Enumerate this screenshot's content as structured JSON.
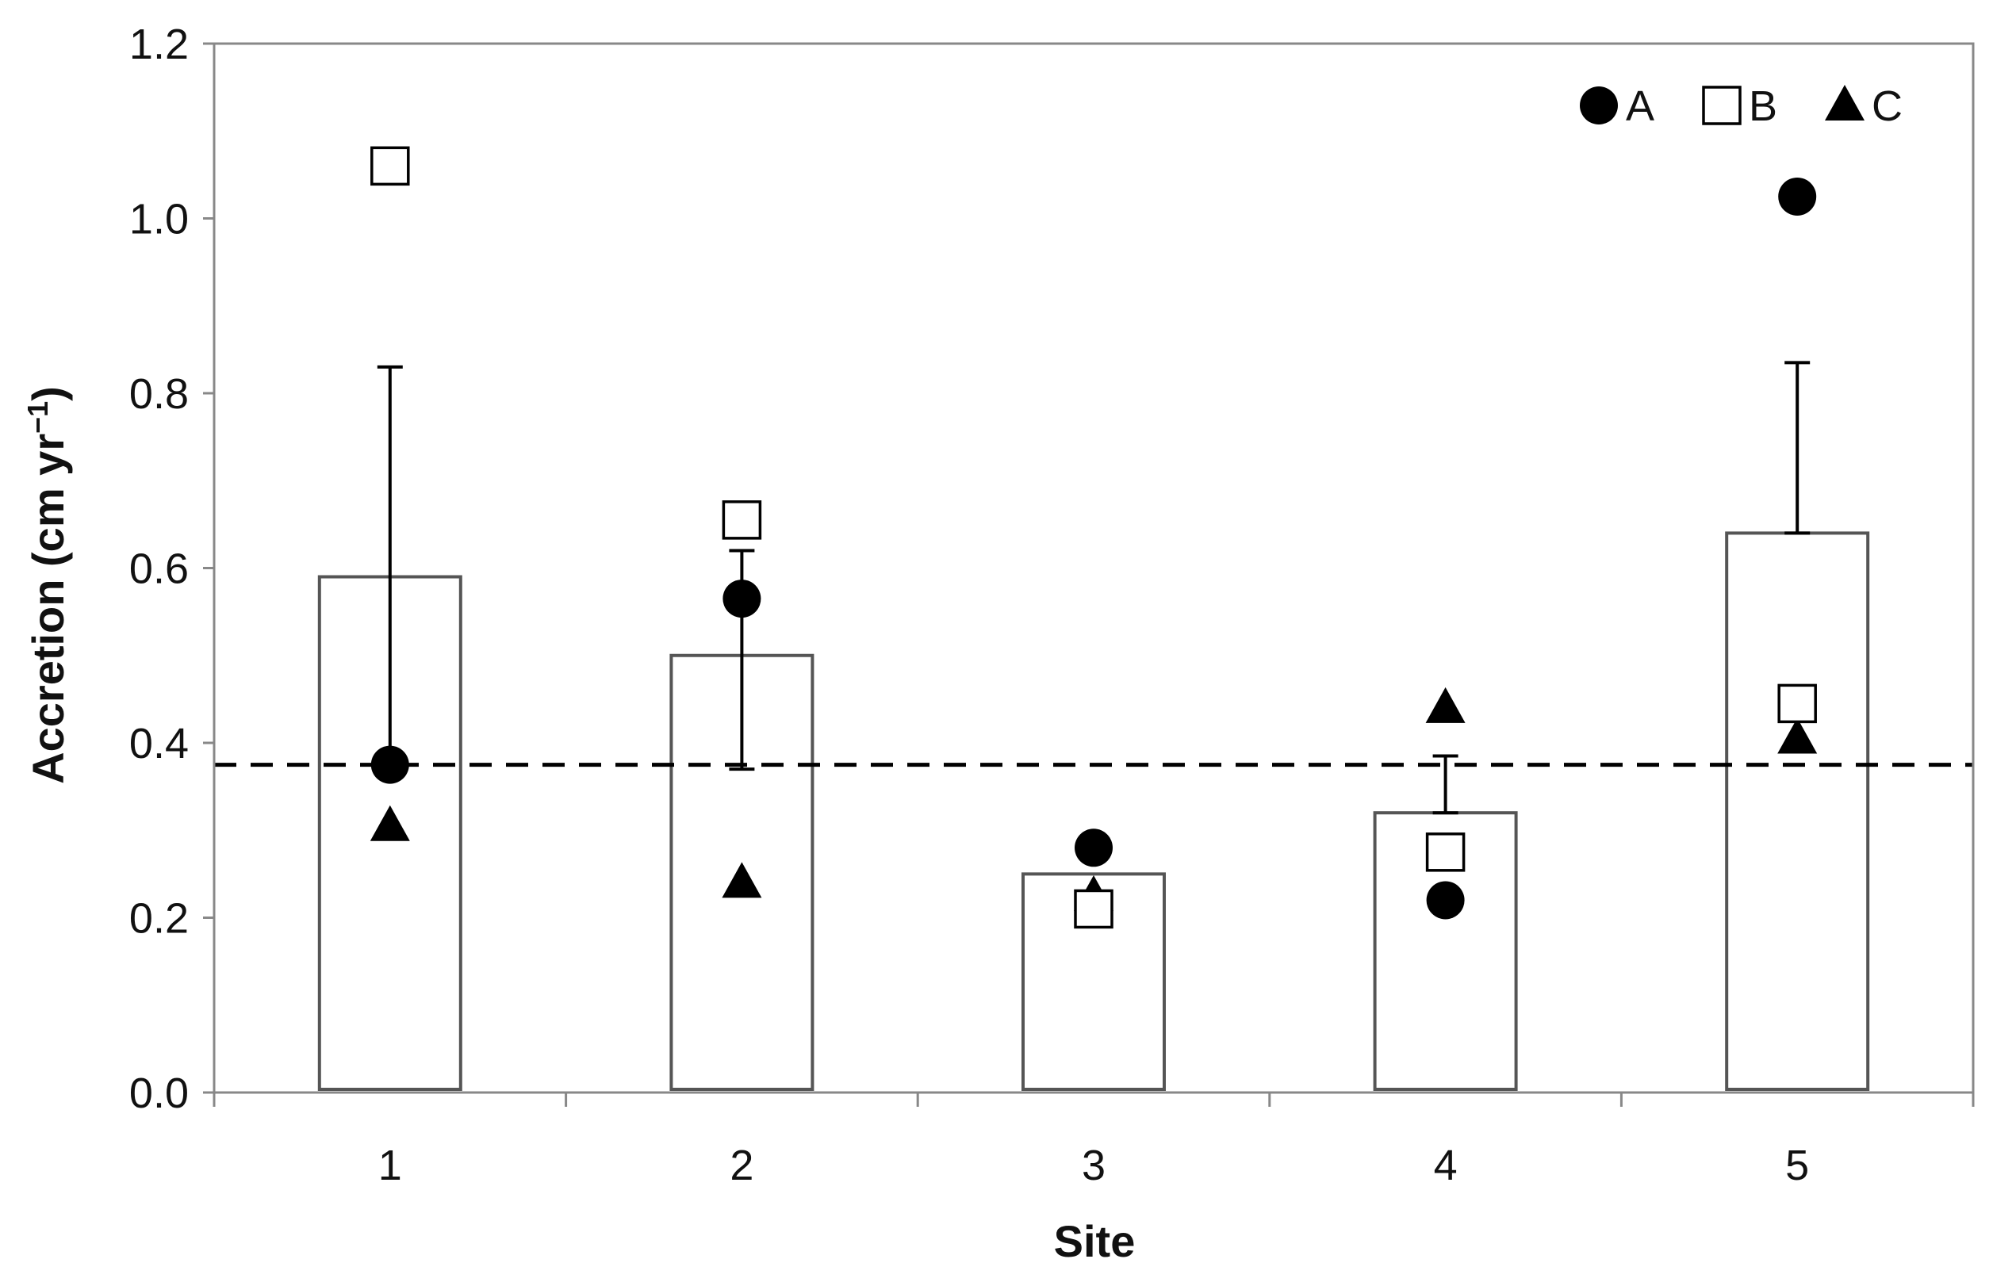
{
  "chart_data": {
    "type": "bar",
    "title": "",
    "xlabel": "Site",
    "ylabel": "Accretion (cm yr",
    "ylabel_superscript": "−1",
    "ylabel_close": ")",
    "categories": [
      "1",
      "2",
      "3",
      "4",
      "5"
    ],
    "ylim": [
      0,
      1.2
    ],
    "yticks": [
      "0.0",
      "0.2",
      "0.4",
      "0.6",
      "0.8",
      "1.0",
      "1.2"
    ],
    "bars": {
      "values": [
        0.59,
        0.5,
        0.25,
        0.32,
        0.64
      ],
      "error_upper": [
        0.83,
        0.62,
        0.25,
        0.385,
        0.835
      ],
      "error_lower": [
        0.375,
        0.37,
        0.25,
        0.32,
        0.64
      ],
      "fill": "#ffffff",
      "stroke": "#555555"
    },
    "series": [
      {
        "name": "A",
        "marker": "filled-circle",
        "values": [
          0.375,
          0.565,
          0.28,
          0.22,
          1.025
        ]
      },
      {
        "name": "B",
        "marker": "open-square",
        "values": [
          1.06,
          0.655,
          0.21,
          0.275,
          0.445
        ]
      },
      {
        "name": "C",
        "marker": "filled-triangle",
        "values": [
          0.305,
          0.24,
          0.225,
          0.44,
          0.405
        ]
      }
    ],
    "reference_line": {
      "value": 0.375,
      "style": "dashed"
    },
    "legend": {
      "position": "top-right"
    },
    "grid": false,
    "colors": {
      "marker": "#000000",
      "axis": "#888888",
      "bar_stroke": "#555555"
    }
  }
}
